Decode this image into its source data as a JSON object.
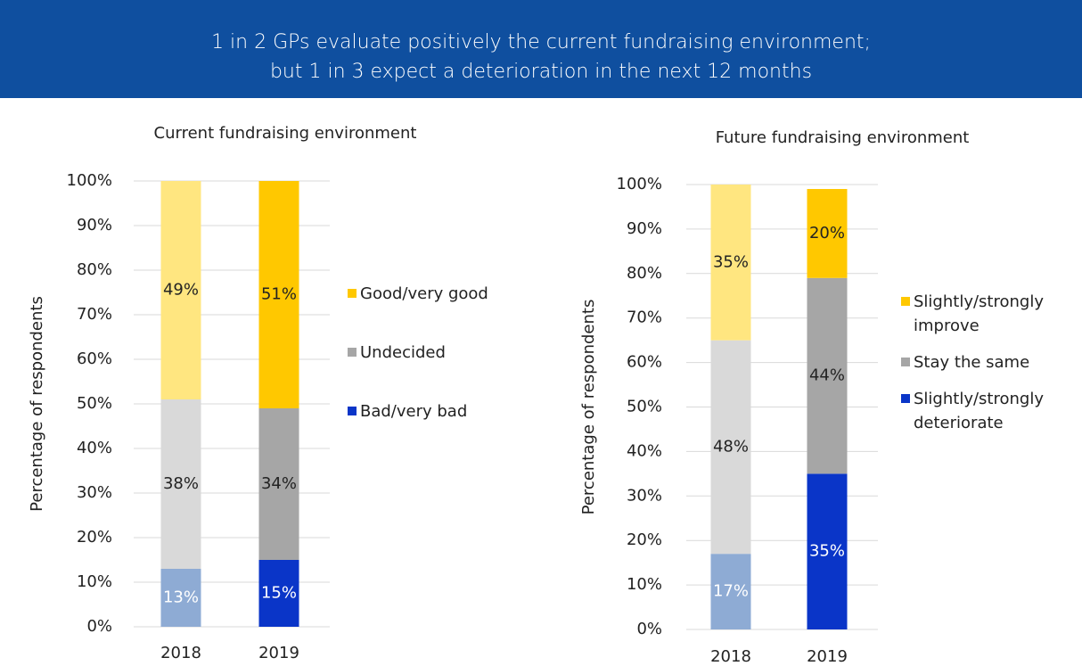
{
  "header": {
    "title_lines": [
      "1 in 2 GPs evaluate positively the current fundraising environment;",
      "but 1 in 3 expect a deterioration in the next 12 months"
    ],
    "color": "#0f4f9f"
  },
  "chart_data": [
    {
      "type": "stacked_bar",
      "title": "Current fundraising environment",
      "y_label": "Percentage of respondents",
      "categories": [
        "2018",
        "2019"
      ],
      "series": [
        {
          "name": "Bad/very bad",
          "colors": [
            "#8eabd4",
            "#0a35c8"
          ],
          "label_color": "#ffffff",
          "values": [
            13,
            15
          ],
          "value_labels": [
            "13%",
            "15%"
          ]
        },
        {
          "name": "Undecided",
          "colors": [
            "#d9d9d9",
            "#a6a6a6"
          ],
          "label_color": "#222222",
          "values": [
            38,
            34
          ],
          "value_labels": [
            "38%",
            "34%"
          ]
        },
        {
          "name": "Good/very good",
          "colors": [
            "#ffe680",
            "#ffc800"
          ],
          "label_color": "#222222",
          "values": [
            49,
            51
          ],
          "value_labels": [
            "49%",
            "51%"
          ]
        }
      ],
      "ylim": [
        0,
        100
      ],
      "yticks": [
        {
          "value": 0,
          "label": "0%"
        },
        {
          "value": 10,
          "label": "10%"
        },
        {
          "value": 20,
          "label": "20%"
        },
        {
          "value": 30,
          "label": "30%"
        },
        {
          "value": 40,
          "label": "40%"
        },
        {
          "value": 50,
          "label": "50%"
        },
        {
          "value": 60,
          "label": "60%"
        },
        {
          "value": 70,
          "label": "70%"
        },
        {
          "value": 80,
          "label": "80%"
        },
        {
          "value": 90,
          "label": "90%"
        },
        {
          "value": 100,
          "label": "100%"
        }
      ],
      "grid": true,
      "legend": "right"
    },
    {
      "type": "stacked_bar",
      "title": "Future fundraising environment",
      "y_label": "Percentage of respondents",
      "categories": [
        "2018",
        "2019"
      ],
      "series": [
        {
          "name": "Slightly/strongly deteriorate",
          "colors": [
            "#8eabd4",
            "#0a35c8"
          ],
          "label_color": "#ffffff",
          "values": [
            17,
            35
          ],
          "value_labels": [
            "17%",
            "35%"
          ]
        },
        {
          "name": "Stay the same",
          "colors": [
            "#d9d9d9",
            "#a6a6a6"
          ],
          "label_color": "#222222",
          "values": [
            48,
            44
          ],
          "value_labels": [
            "48%",
            "44%"
          ]
        },
        {
          "name": "Slightly/strongly improve",
          "colors": [
            "#ffe680",
            "#ffc800"
          ],
          "label_color": "#222222",
          "values": [
            35,
            20
          ],
          "value_labels": [
            "35%",
            "20%"
          ]
        }
      ],
      "ylim": [
        0,
        100
      ],
      "yticks": [
        {
          "value": 0,
          "label": "0%"
        },
        {
          "value": 10,
          "label": "10%"
        },
        {
          "value": 20,
          "label": "20%"
        },
        {
          "value": 30,
          "label": "30%"
        },
        {
          "value": 40,
          "label": "40%"
        },
        {
          "value": 50,
          "label": "50%"
        },
        {
          "value": 60,
          "label": "60%"
        },
        {
          "value": 70,
          "label": "70%"
        },
        {
          "value": 80,
          "label": "80%"
        },
        {
          "value": 90,
          "label": "90%"
        },
        {
          "value": 100,
          "label": "100%"
        }
      ],
      "grid": true,
      "legend": "right"
    }
  ]
}
